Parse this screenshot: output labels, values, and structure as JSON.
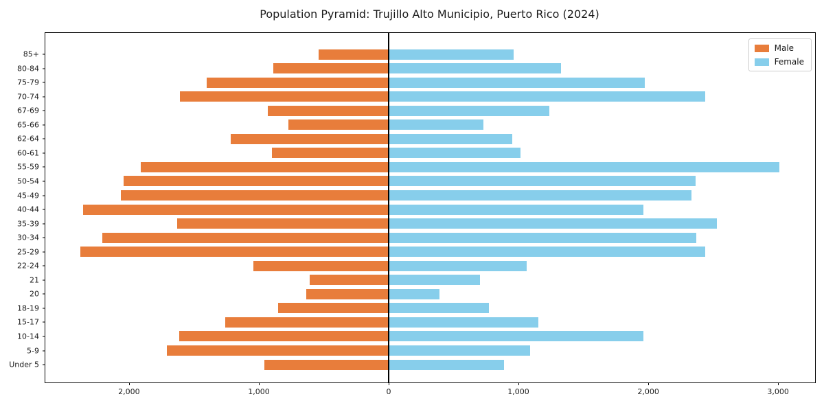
{
  "figure": {
    "title": "Population Pyramid: Trujillo Alto Municipio, Puerto Rico (2024)"
  },
  "colors": {
    "male": "#e87d3b",
    "female": "#87ceeb",
    "axis": "#000000",
    "text": "#1a1a1a"
  },
  "legend": {
    "position": "upper right",
    "items": [
      {
        "label": "Male",
        "color": "#e87d3b"
      },
      {
        "label": "Female",
        "color": "#87ceeb"
      }
    ]
  },
  "chart_data": {
    "type": "bar",
    "subtype": "population-pyramid",
    "title": "Population Pyramid: Trujillo Alto Municipio, Puerto Rico (2024)",
    "xlabel": "",
    "ylabel": "",
    "grid": false,
    "legend_position": "upper right",
    "xlim": [
      -2645,
      3285
    ],
    "x_ticks": [
      {
        "value": -2000,
        "label": "2,000"
      },
      {
        "value": -1000,
        "label": "1,000"
      },
      {
        "value": 0,
        "label": "0"
      },
      {
        "value": 1000,
        "label": "1,000"
      },
      {
        "value": 2000,
        "label": "2,000"
      },
      {
        "value": 3000,
        "label": "3,000"
      }
    ],
    "categories": [
      "85+",
      "80-84",
      "75-79",
      "70-74",
      "67-69",
      "65-66",
      "62-64",
      "60-61",
      "55-59",
      "50-54",
      "45-49",
      "40-44",
      "35-39",
      "30-34",
      "25-29",
      "22-24",
      "21",
      "20",
      "18-19",
      "15-17",
      "10-14",
      "5-9",
      "Under 5"
    ],
    "series": [
      {
        "name": "Male",
        "side": "left",
        "color": "#e87d3b",
        "values": [
          540,
          890,
          1400,
          1610,
          930,
          770,
          1215,
          900,
          1910,
          2040,
          2065,
          2355,
          1630,
          2205,
          2375,
          1040,
          610,
          635,
          850,
          1260,
          1615,
          1710,
          960
        ]
      },
      {
        "name": "Female",
        "side": "right",
        "color": "#87ceeb",
        "values": [
          965,
          1330,
          1975,
          2440,
          1240,
          730,
          950,
          1015,
          3010,
          2365,
          2330,
          1960,
          2530,
          2370,
          2440,
          1065,
          705,
          390,
          770,
          1155,
          1960,
          1090,
          890
        ]
      }
    ]
  }
}
